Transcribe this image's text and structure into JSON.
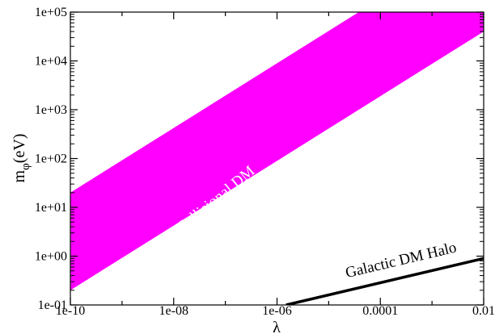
{
  "chart_data": {
    "type": "area",
    "title": "",
    "xlabel": "λ",
    "ylabel": {
      "base": "m",
      "sub": "φ",
      "rest": "(eV)"
    },
    "x_scale": "log",
    "y_scale": "log",
    "xlim": [
      1e-10,
      0.01
    ],
    "ylim": [
      0.1,
      100000
    ],
    "x_ticks": [
      {
        "value": 1e-10,
        "label": "1e-10"
      },
      {
        "value": 1e-08,
        "label": "1e-08"
      },
      {
        "value": 1e-06,
        "label": "1e-06"
      },
      {
        "value": 0.0001,
        "label": "0.0001"
      },
      {
        "value": 0.01,
        "label": "0.01"
      }
    ],
    "y_ticks": [
      {
        "value": 0.1,
        "label": "1e-01"
      },
      {
        "value": 1,
        "label": "1e+00"
      },
      {
        "value": 10,
        "label": "1e+01"
      },
      {
        "value": 100,
        "label": "1e+02"
      },
      {
        "value": 1000,
        "label": "1e+03"
      },
      {
        "value": 10000,
        "label": "1e+04"
      },
      {
        "value": 100000,
        "label": "1e+05"
      }
    ],
    "grid": false,
    "legend": "none",
    "series": [
      {
        "name": "Collisional DM",
        "type": "band",
        "color": "#ff00ff",
        "label_color": "#ffffff",
        "x": [
          1e-10,
          0.01
        ],
        "y_lower": [
          0.2,
          40000
        ],
        "y_upper": [
          20,
          4000000
        ]
      },
      {
        "name": "Galactic DM Halo",
        "type": "line",
        "color": "#000000",
        "label_color": "#000000",
        "x": [
          1.5e-06,
          0.01
        ],
        "y": [
          0.1,
          0.9
        ]
      }
    ]
  }
}
